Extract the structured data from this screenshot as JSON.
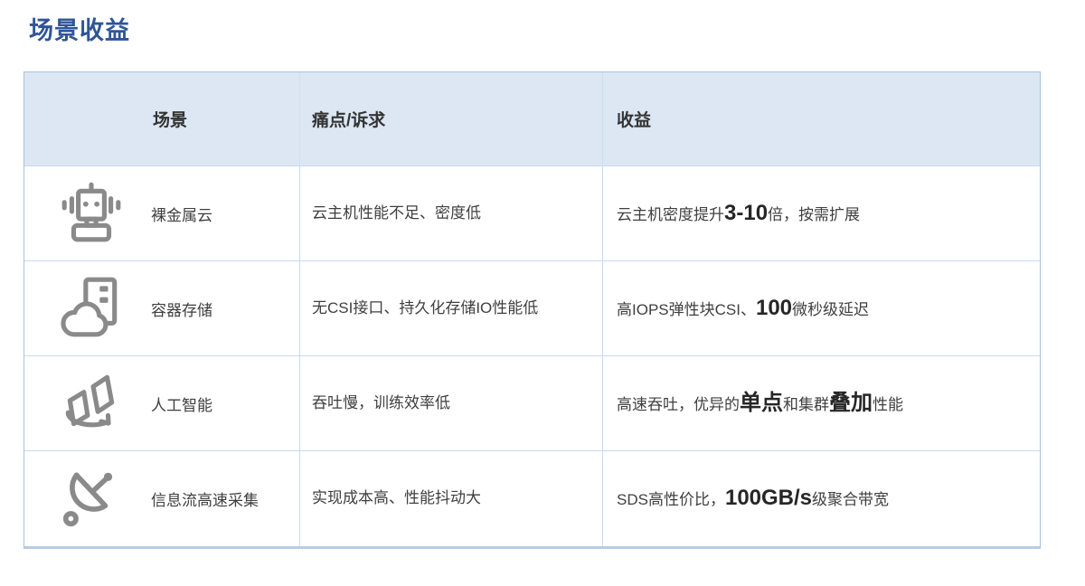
{
  "page": {
    "title": "场景收益"
  },
  "colors": {
    "title_blue": "#2F5597",
    "header_bg": "#DCE7F3",
    "grid_border": "#C9DAED",
    "outer_border": "#A9C3DE",
    "icon_gray": "#8A8A8A",
    "body_text": "#3F3F3F"
  },
  "table": {
    "headers": [
      {
        "label": "场景"
      },
      {
        "label": "痛点/诉求"
      },
      {
        "label": "收益"
      }
    ],
    "rows": [
      {
        "icon": "robot-icon",
        "scene": "裸金属云",
        "pain": "云主机性能不足、密度低",
        "benefit": [
          {
            "text": "云主机密度提升",
            "em": false
          },
          {
            "text": "3-10",
            "em": true
          },
          {
            "text": "倍，按需扩展",
            "em": false
          }
        ]
      },
      {
        "icon": "cloud-server-icon",
        "scene": "容器存储",
        "pain": "无CSI接口、持久化存储IO性能低",
        "benefit": [
          {
            "text": "高IOPS弹性块CSI、",
            "em": false
          },
          {
            "text": "100",
            "em": true
          },
          {
            "text": "微秒级延迟",
            "em": false
          }
        ]
      },
      {
        "icon": "ai-panels-icon",
        "scene": "人工智能",
        "pain": "吞吐慢，训练效率低",
        "benefit": [
          {
            "text": "高速吞吐，优异的",
            "em": false
          },
          {
            "text": "单点",
            "em": true
          },
          {
            "text": "和集群",
            "em": false
          },
          {
            "text": "叠加",
            "em": true
          },
          {
            "text": "性能",
            "em": false
          }
        ]
      },
      {
        "icon": "satellite-dish-icon",
        "scene": "信息流高速采集",
        "pain": "实现成本高、性能抖动大",
        "benefit": [
          {
            "text": "SDS高性价比，",
            "em": false
          },
          {
            "text": "100GB/s",
            "em": true
          },
          {
            "text": "级聚合带宽",
            "em": false
          }
        ]
      }
    ]
  }
}
